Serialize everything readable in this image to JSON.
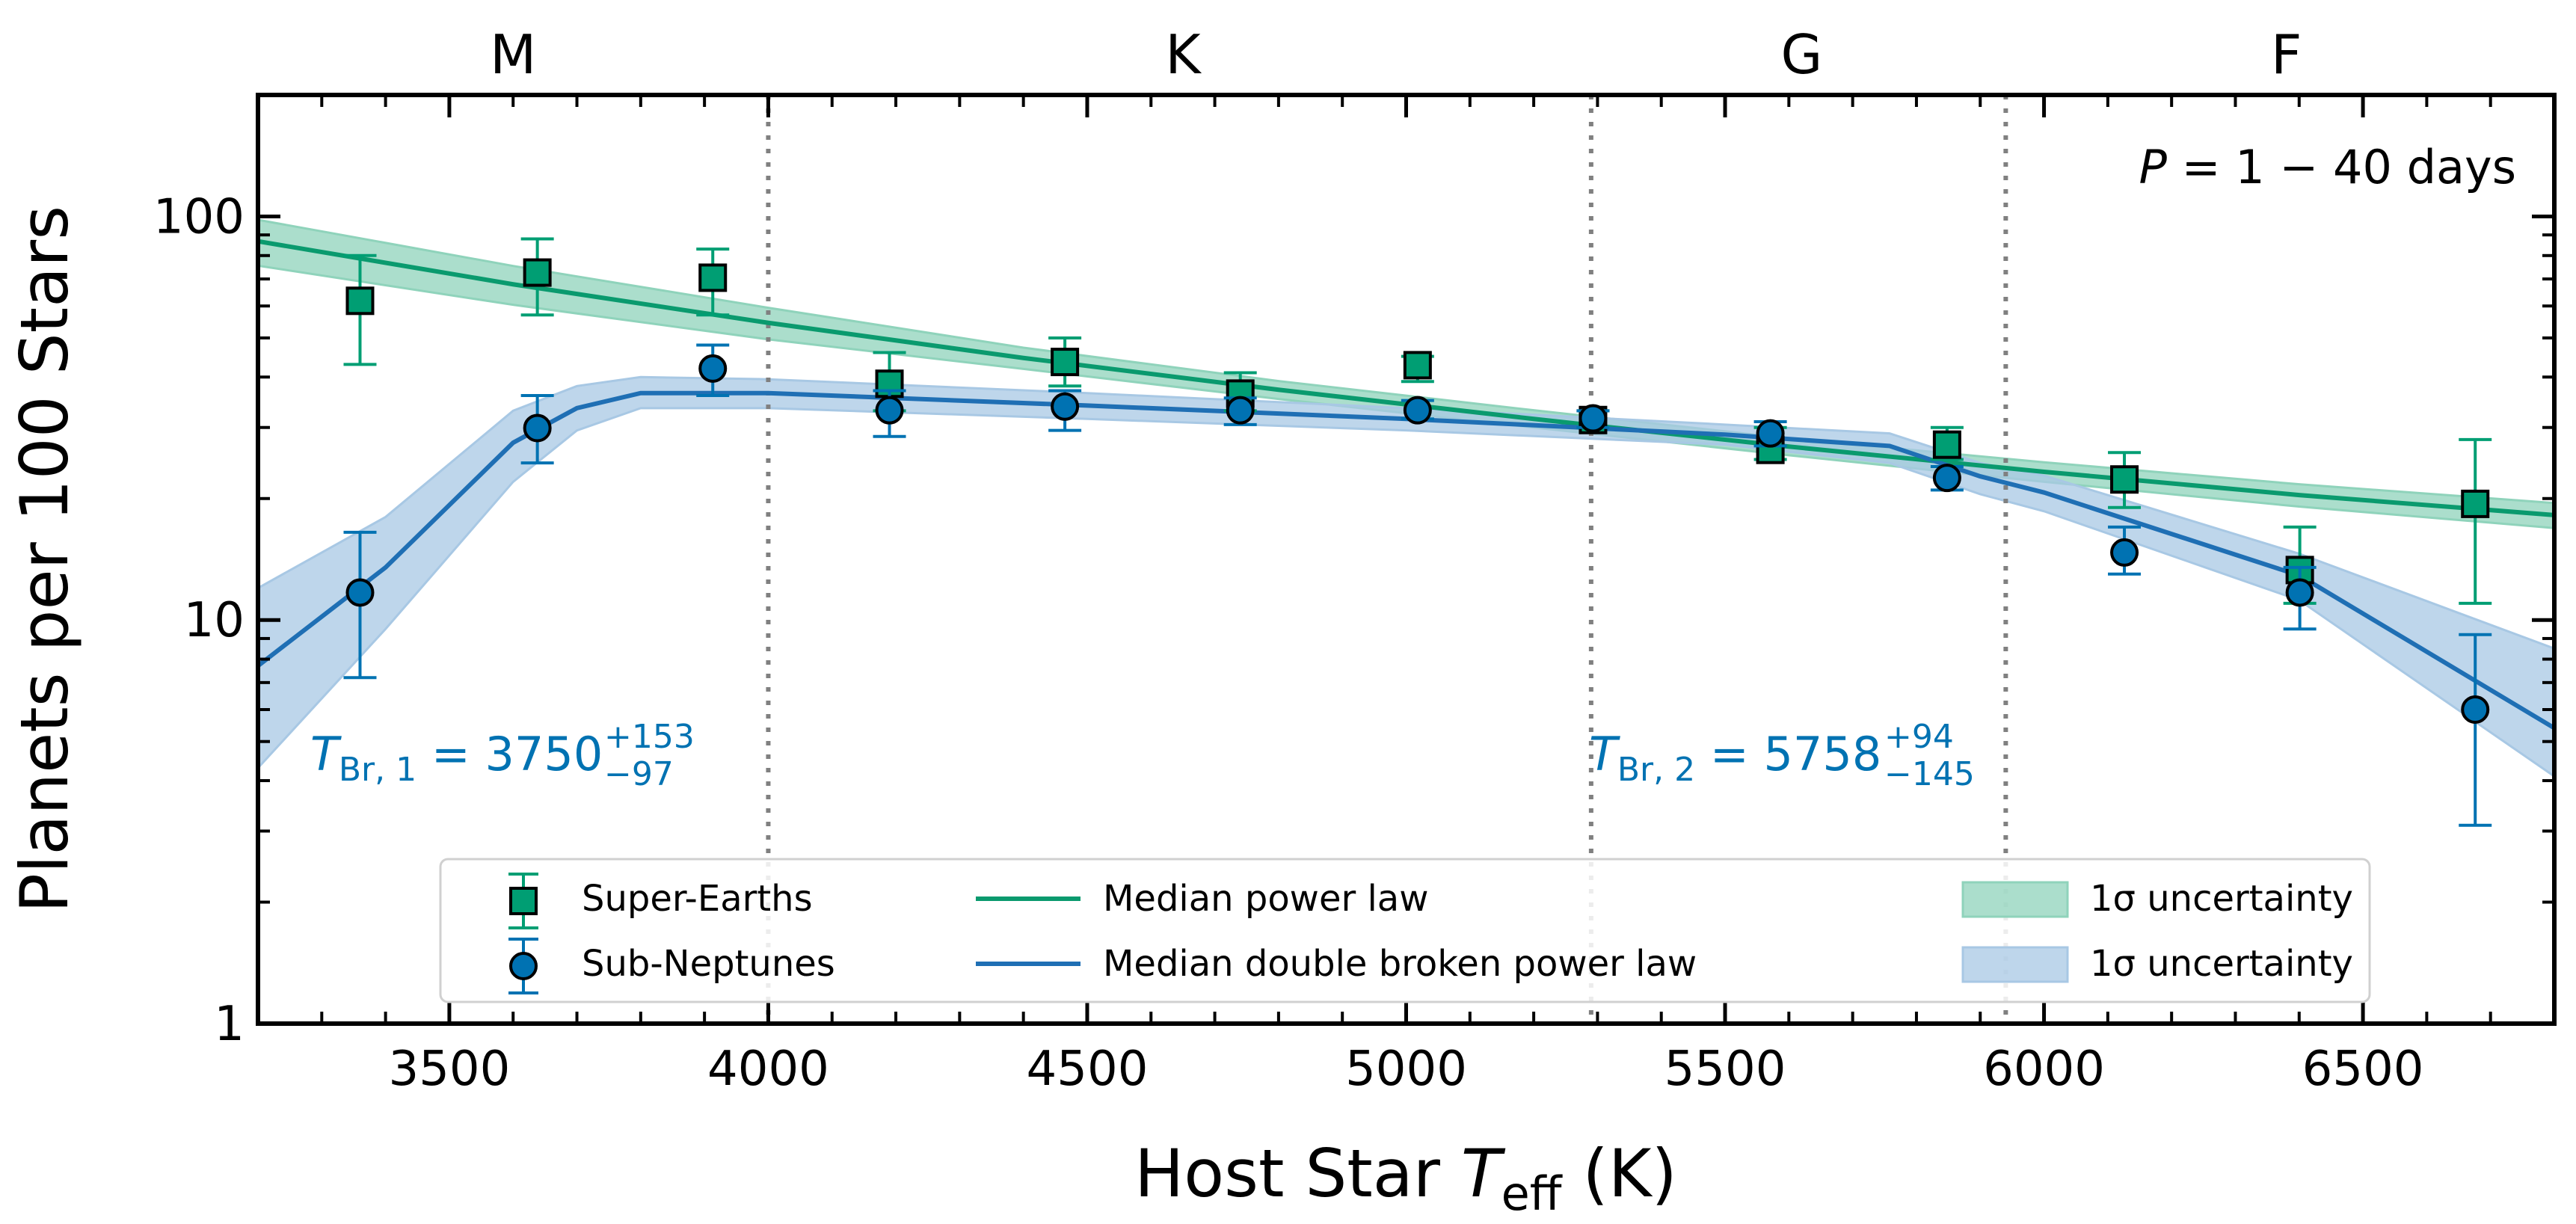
{
  "chart_data": {
    "type": "scatter",
    "xlabel_main": "Host Star ",
    "xlabel_italic": "T",
    "xlabel_sub": "eff",
    "xlabel_unit": " (K)",
    "ylabel": "Planets per 100 Stars",
    "xlim": [
      3200,
      6800
    ],
    "ylim": [
      1,
      200
    ],
    "yscale": "log",
    "xticks": [
      3500,
      4000,
      4500,
      5000,
      5500,
      6000,
      6500
    ],
    "yticks": [
      {
        "value": 1,
        "label": "1"
      },
      {
        "value": 10,
        "label": "10"
      },
      {
        "value": 100,
        "label": "100"
      }
    ],
    "grid": false,
    "spectral_types": [
      {
        "label": "M",
        "center": 3600
      },
      {
        "label": "K",
        "center": 4650
      },
      {
        "label": "G",
        "center": 5620
      },
      {
        "label": "F",
        "center": 6380
      }
    ],
    "boundaries": [
      4000,
      5290,
      5940
    ],
    "period_label": {
      "italic": "P",
      "rest": " = 1 − 40 days"
    },
    "break_annotations": [
      {
        "main": "T",
        "sub": "Br, 1",
        "value": " = 3750",
        "plus": "+153",
        "minus": "−97"
      },
      {
        "main": "T",
        "sub": "Br, 2",
        "value": " = 5758",
        "plus": "+94",
        "minus": "−145"
      }
    ],
    "colors": {
      "super_earths": "#009E73",
      "sub_neptunes": "#0072B2",
      "green_line": "#0a9a6e",
      "blue_line": "#1f6fb4",
      "green_band": "#8fd3bb",
      "blue_band": "#a8c8e4",
      "boundary": "#808080"
    },
    "series": [
      {
        "name": "Super-Earths",
        "marker": "square",
        "x": [
          3360,
          3638,
          3913,
          4190,
          4465,
          4740,
          5018,
          5293,
          5571,
          5848,
          6126,
          6401,
          6676
        ],
        "y": [
          61.8,
          72.6,
          70.5,
          38.5,
          43.6,
          36.4,
          42.8,
          31.3,
          26.4,
          27.2,
          22.3,
          13.3,
          19.4
        ],
        "y_low": [
          43,
          57,
          57,
          33,
          38,
          33,
          39,
          30,
          25,
          25,
          19,
          11,
          11
        ],
        "y_high": [
          80,
          88,
          83,
          46,
          50,
          41,
          45,
          33,
          30,
          30,
          26,
          17,
          28
        ]
      },
      {
        "name": "Sub-Neptunes",
        "marker": "circle",
        "x": [
          3360,
          3638,
          3913,
          4190,
          4465,
          4740,
          5018,
          5293,
          5571,
          5848,
          6126,
          6401,
          6676
        ],
        "y": [
          11.7,
          29.9,
          42.0,
          33.1,
          33.8,
          33.1,
          33.1,
          31.6,
          29.0,
          22.5,
          14.7,
          11.7,
          6.0
        ],
        "y_low": [
          7.2,
          24.5,
          36,
          28.5,
          29.5,
          30.5,
          31.5,
          30,
          27,
          21,
          13,
          9.5,
          3.1
        ],
        "y_high": [
          16.5,
          36,
          48,
          37,
          37,
          35.5,
          35,
          33,
          31,
          24,
          17,
          13.5,
          9.2
        ]
      }
    ],
    "models": [
      {
        "name": "Median power law",
        "band_name": "1σ uncertainty",
        "x": [
          3200,
          3600,
          4000,
          4400,
          4800,
          5200,
          5600,
          6000,
          6400,
          6800
        ],
        "y": [
          86.8,
          67.9,
          54.5,
          44.6,
          37.2,
          31.5,
          26.9,
          23.3,
          20.4,
          18.2
        ],
        "y_low": [
          75.5,
          60.4,
          49.6,
          41.9,
          35.3,
          30.0,
          25.6,
          22.0,
          19.1,
          16.9
        ],
        "y_high": [
          98.1,
          75.4,
          59.4,
          47.3,
          39.1,
          33.1,
          28.2,
          24.6,
          21.7,
          19.5
        ]
      },
      {
        "name": "Median double broken power law",
        "band_name": "1σ uncertainty",
        "x": [
          3200,
          3400,
          3600,
          3700,
          3800,
          4000,
          4500,
          5000,
          5500,
          5758,
          5900,
          6000,
          6400,
          6800
        ],
        "y": [
          7.7,
          13.5,
          27.5,
          33.5,
          36.5,
          36.5,
          34,
          31.5,
          28.8,
          27,
          22.7,
          20.7,
          12.9,
          5.4
        ],
        "y_low": [
          4.3,
          9.5,
          22,
          29.5,
          33.5,
          33.5,
          31.5,
          29.5,
          27.2,
          24.5,
          20.5,
          18.6,
          11.2,
          4.1
        ],
        "y_high": [
          12,
          18,
          33,
          38,
          40,
          39.5,
          36.5,
          33.5,
          30.5,
          29,
          24.5,
          22.8,
          14.6,
          8.5
        ]
      }
    ],
    "legend": {
      "position": "bottom-center",
      "entries": [
        "Super-Earths",
        "Sub-Neptunes",
        "Median power law",
        "Median double broken power law",
        "1σ uncertainty",
        "1σ uncertainty"
      ]
    }
  }
}
